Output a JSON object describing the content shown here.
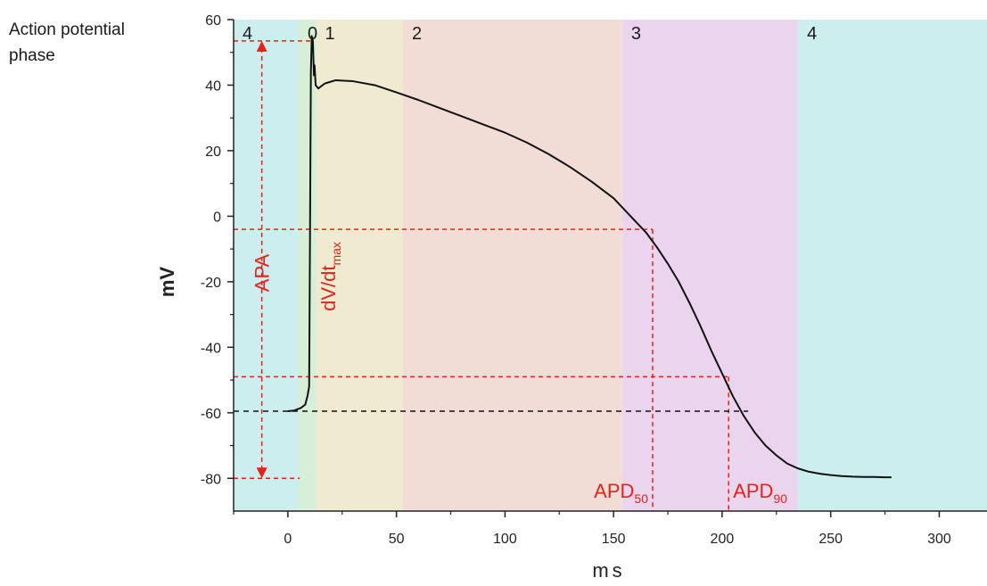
{
  "chart_data": {
    "type": "line",
    "title": "",
    "xlabel": "ms",
    "ylabel": "mV",
    "xlim": [
      -25,
      322
    ],
    "ylim": [
      -90,
      60
    ],
    "x_ticks": [
      0,
      50,
      100,
      150,
      200,
      250,
      300
    ],
    "y_ticks": [
      60,
      40,
      20,
      0,
      -20,
      -40,
      -60,
      -80
    ],
    "x_tick_labels": [
      "0",
      "50",
      "100",
      "150",
      "200",
      "250",
      "300"
    ],
    "y_tick_labels": [
      "60",
      "40",
      "20",
      "0",
      "-20",
      "-40",
      "-60",
      "-80"
    ],
    "grid": false,
    "phase_legend_label": "Action potential phase",
    "phase_legend_lines": [
      "Action potential",
      "phase"
    ],
    "phases": [
      {
        "label": "4",
        "x_start": -25,
        "x_end": 5,
        "color": "#cdeeee"
      },
      {
        "label": "0",
        "x_start": 5,
        "x_end": 13,
        "color": "#d6efd6"
      },
      {
        "label": "1",
        "x_start": 13,
        "x_end": 53,
        "color": "#f0ead1"
      },
      {
        "label": "2",
        "x_start": 53,
        "x_end": 154,
        "color": "#f1ddd6"
      },
      {
        "label": "3",
        "x_start": 154,
        "x_end": 235,
        "color": "#ead4ee"
      },
      {
        "label": "4",
        "x_start": 235,
        "x_end": 322,
        "color": "#cdeeee"
      }
    ],
    "series": [
      {
        "color": "#111111",
        "x": [
          0,
          3,
          6,
          8,
          9,
          9.8,
          10.2,
          10.6,
          11,
          11.5,
          12,
          12.3,
          12.8,
          14,
          17,
          22,
          30,
          40,
          50,
          60,
          70,
          80,
          90,
          100,
          110,
          120,
          130,
          140,
          150,
          155,
          160,
          165,
          170,
          175,
          180,
          185,
          190,
          195,
          200,
          205,
          210,
          215,
          220,
          225,
          230,
          235,
          240,
          245,
          250,
          255,
          260,
          265,
          270,
          275,
          278
        ],
        "y": [
          -59.5,
          -59.3,
          -58.5,
          -57.5,
          -55,
          -52,
          -5,
          44,
          55,
          53.5,
          43,
          46,
          40,
          39,
          40.5,
          41.5,
          41.2,
          40,
          37.8,
          35.5,
          33,
          30.5,
          28,
          25.5,
          22.5,
          19,
          15,
          10.5,
          5.5,
          2,
          -1.5,
          -5,
          -9.5,
          -14.5,
          -20,
          -26.5,
          -33.5,
          -41,
          -48,
          -55,
          -61,
          -66,
          -70,
          -73,
          -75.5,
          -77,
          -78,
          -78.6,
          -79,
          -79.3,
          -79.5,
          -79.6,
          -79.6,
          -79.7,
          -79.7
        ]
      }
    ],
    "reference_lines": {
      "apa_arrow_x": -12,
      "apa_top_y": 53.5,
      "apa_bottom_y": -80,
      "apd50_level_y": -4,
      "apd50_x": 168,
      "apd90_level_y": -49,
      "apd90_x": 203,
      "resting_y": -59.5,
      "resting_x_end": 212,
      "dvdt_x": 11.2,
      "dvdt_y_top": 54,
      "dvdt_y_bottom": -80
    },
    "annotations": {
      "apa": "APA",
      "dvdt_main": "dV/dt",
      "dvdt_sub": "max",
      "apd50_main": "APD",
      "apd50_sub": "50",
      "apd90_main": "APD",
      "apd90_sub": "90"
    },
    "colors": {
      "annotation": "#e2231a",
      "curve": "#111111",
      "resting_line": "#111111",
      "axis": "#222222"
    }
  }
}
